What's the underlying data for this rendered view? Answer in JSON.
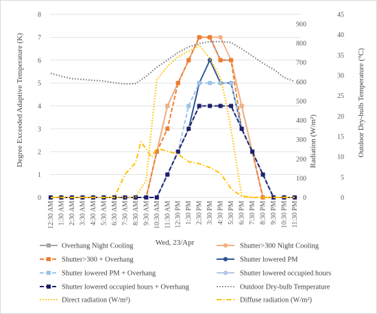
{
  "chart_data": {
    "type": "line",
    "xlabel": "Wed, 23/Apr",
    "ylabel_left": "Degree Exceeded Adaptive Temperature (K)",
    "ylabel_radiation": "Radiation (W/m²)",
    "ylabel_right": "Outdoor Dry-bulb Temperature (°C)",
    "ylim_left": [
      0,
      8
    ],
    "ylim_radiation": [
      0,
      900
    ],
    "ylim_right": [
      0,
      45
    ],
    "yticks_left": [
      "0",
      "1",
      "2",
      "3",
      "4",
      "5",
      "6",
      "7",
      "8"
    ],
    "yticks_radiation": [
      "0",
      "100",
      "200",
      "300",
      "400",
      "500",
      "600",
      "700",
      "800",
      "900"
    ],
    "yticks_right": [
      "0",
      "5",
      "10",
      "15",
      "20",
      "25",
      "30",
      "35",
      "40",
      "45"
    ],
    "categories": [
      "12:30 AM",
      "1:30 AM",
      "2:30 AM",
      "3:30 AM",
      "4:30 AM",
      "5:30 AM",
      "6:30 AM",
      "7:30 AM",
      "8:30 AM",
      "9:30 AM",
      "10:30 AM",
      "11:30 AM",
      "12:30 PM",
      "1:30 PM",
      "2:30 PM",
      "3:30 PM",
      "4:30 PM",
      "5:30 PM",
      "6:30 PM",
      "7:30 PM",
      "8:30 PM",
      "9:30 PM",
      "10:30 PM",
      "11:30 PM"
    ],
    "x_positions": [
      0,
      1,
      2,
      3,
      4,
      5,
      6,
      7,
      8,
      9,
      10,
      11,
      12,
      13,
      14,
      15,
      16,
      17,
      18,
      19,
      20,
      21,
      22,
      23
    ],
    "grid": "horizontal",
    "legend_placement": "bottom",
    "series": [
      {
        "name": "Overhang Night Cooling",
        "axis": "left",
        "color": "#a5a5a5",
        "style": "solid",
        "marker": "square",
        "x": [
          0,
          1,
          2,
          3,
          4,
          5,
          6,
          7,
          8,
          9,
          10,
          11,
          12,
          13,
          14,
          15,
          16,
          17,
          18,
          19,
          20,
          21,
          22,
          23
        ],
        "values": [
          0,
          0,
          0,
          0,
          0,
          0,
          0,
          0,
          0,
          0,
          2,
          4,
          5,
          6,
          7,
          7,
          6,
          6,
          4,
          2,
          0,
          0,
          0,
          0
        ]
      },
      {
        "name": "Shutter>300 Night Cooling",
        "axis": "left",
        "color": "#f4b183",
        "style": "solid",
        "marker": "circle",
        "x": [
          0,
          1,
          2,
          3,
          4,
          5,
          6,
          7,
          8,
          9,
          10,
          11,
          12,
          13,
          14,
          15,
          16,
          17,
          18,
          19,
          20,
          21,
          22,
          23
        ],
        "values": [
          0,
          0,
          0,
          0,
          0,
          0,
          0,
          0,
          0,
          0,
          2,
          4,
          5,
          6,
          7,
          7,
          7,
          6,
          4,
          2,
          0,
          0,
          0,
          0
        ]
      },
      {
        "name": "Shutter>300 + Overhang",
        "axis": "left",
        "color": "#ed7d31",
        "style": "dash",
        "marker": "square",
        "x": [
          0,
          1,
          2,
          3,
          4,
          5,
          6,
          7,
          8,
          9,
          10,
          11,
          12,
          13,
          14,
          15,
          16,
          17,
          18,
          19,
          20,
          21,
          22,
          23
        ],
        "values": [
          0,
          0,
          0,
          0,
          0,
          0,
          0,
          0,
          0,
          0,
          2,
          3,
          5,
          6,
          7,
          7,
          6,
          6,
          3,
          2,
          0,
          0,
          0,
          0
        ]
      },
      {
        "name": "Shutter lowered PM",
        "axis": "left",
        "color": "#2f5597",
        "style": "solid",
        "marker": "circle",
        "x": [
          0,
          1,
          2,
          3,
          4,
          5,
          6,
          7,
          8,
          9,
          10,
          11,
          12,
          13,
          14,
          15,
          16,
          17,
          18,
          19,
          20,
          21,
          22,
          23
        ],
        "values": [
          0,
          0,
          0,
          0,
          0,
          0,
          0,
          0,
          0,
          0,
          0,
          1,
          2,
          3,
          5,
          6,
          5,
          5,
          3,
          2,
          1,
          0,
          0,
          0
        ]
      },
      {
        "name": "Shutter lowered PM + Overhang",
        "axis": "left",
        "color": "#9dc3e6",
        "style": "dash",
        "marker": "square",
        "x": [
          0,
          1,
          2,
          3,
          4,
          5,
          6,
          7,
          8,
          9,
          10,
          11,
          12,
          13,
          14,
          15,
          16,
          17,
          18,
          19,
          20,
          21,
          22,
          23
        ],
        "values": [
          0,
          0,
          0,
          0,
          0,
          0,
          0,
          0,
          0,
          0,
          0,
          1,
          2,
          4,
          5,
          5,
          5,
          5,
          3,
          2,
          1,
          0,
          0,
          0
        ]
      },
      {
        "name": "Shutter lowered occupied hours",
        "axis": "left",
        "color": "#b4c7e7",
        "style": "solid",
        "marker": "circle",
        "x": [
          0,
          1,
          2,
          3,
          4,
          5,
          6,
          7,
          8,
          9,
          10,
          11,
          12,
          13,
          14,
          15,
          16,
          17,
          18,
          19,
          20,
          21,
          22,
          23
        ],
        "values": [
          0,
          0,
          0,
          0,
          0,
          0,
          0,
          0,
          0,
          0,
          0,
          1,
          2,
          3,
          4,
          4,
          4,
          4,
          3,
          2,
          1,
          0,
          0,
          0
        ]
      },
      {
        "name": "Shutter lowered occupied hours + Overhang",
        "axis": "left",
        "color": "#20206a",
        "style": "dash",
        "marker": "square",
        "x": [
          0,
          1,
          2,
          3,
          4,
          5,
          6,
          7,
          8,
          9,
          10,
          11,
          12,
          13,
          14,
          15,
          16,
          17,
          18,
          19,
          20,
          21,
          22,
          23
        ],
        "values": [
          0,
          0,
          0,
          0,
          0,
          0,
          0,
          0,
          0,
          0,
          0,
          1,
          2,
          3,
          4,
          4,
          4,
          4,
          3,
          2,
          1,
          0,
          0,
          0
        ]
      },
      {
        "name": "Outdoor Dry-bulb Temperature",
        "axis": "right",
        "color": "#808080",
        "style": "dot",
        "marker": "none",
        "x": [
          0,
          1,
          2,
          3,
          4,
          5,
          6,
          7,
          8,
          9,
          10,
          11,
          12,
          13,
          14,
          15,
          16,
          17,
          18,
          19,
          20,
          21,
          22,
          23
        ],
        "values": [
          30.5,
          29.8,
          29.2,
          29.0,
          28.8,
          28.6,
          28.2,
          27.9,
          28.0,
          29.8,
          32.0,
          33.8,
          35.6,
          37.0,
          37.8,
          38.3,
          38.3,
          38.1,
          36.5,
          34.8,
          33.0,
          31.5,
          29.5,
          28.5
        ]
      },
      {
        "name": "Direct radiation (W/m²)",
        "axis": "radiation",
        "color": "#ffc000",
        "style": "dot",
        "marker": "none",
        "x": [
          0,
          1,
          2,
          3,
          4,
          5,
          6,
          7,
          8,
          9,
          9.5,
          10,
          11,
          12,
          13,
          13.5,
          14,
          14.5,
          15,
          16,
          16.5,
          17,
          17.5,
          18,
          19,
          20,
          21,
          22,
          23
        ],
        "values": [
          0,
          0,
          0,
          0,
          0,
          0,
          0,
          0,
          0,
          90,
          360,
          610,
          680,
          730,
          760,
          770,
          790,
          755,
          720,
          620,
          500,
          350,
          180,
          10,
          0,
          0,
          0,
          0,
          0
        ]
      },
      {
        "name": "Diffuse radiation (W/m²)",
        "axis": "radiation",
        "color": "#ffc000",
        "style": "dashdot",
        "marker": "none",
        "x": [
          0,
          1,
          2,
          3,
          4,
          5,
          6,
          7,
          7.5,
          8,
          8.5,
          9,
          9.5,
          10,
          11,
          12,
          13,
          14,
          15,
          16,
          17,
          17.5,
          18,
          19,
          20,
          21,
          22,
          23
        ],
        "values": [
          0,
          0,
          0,
          0,
          0,
          0,
          0,
          120,
          150,
          180,
          290,
          250,
          210,
          255,
          240,
          225,
          185,
          175,
          155,
          125,
          45,
          25,
          5,
          0,
          0,
          0,
          0,
          0
        ]
      }
    ]
  }
}
